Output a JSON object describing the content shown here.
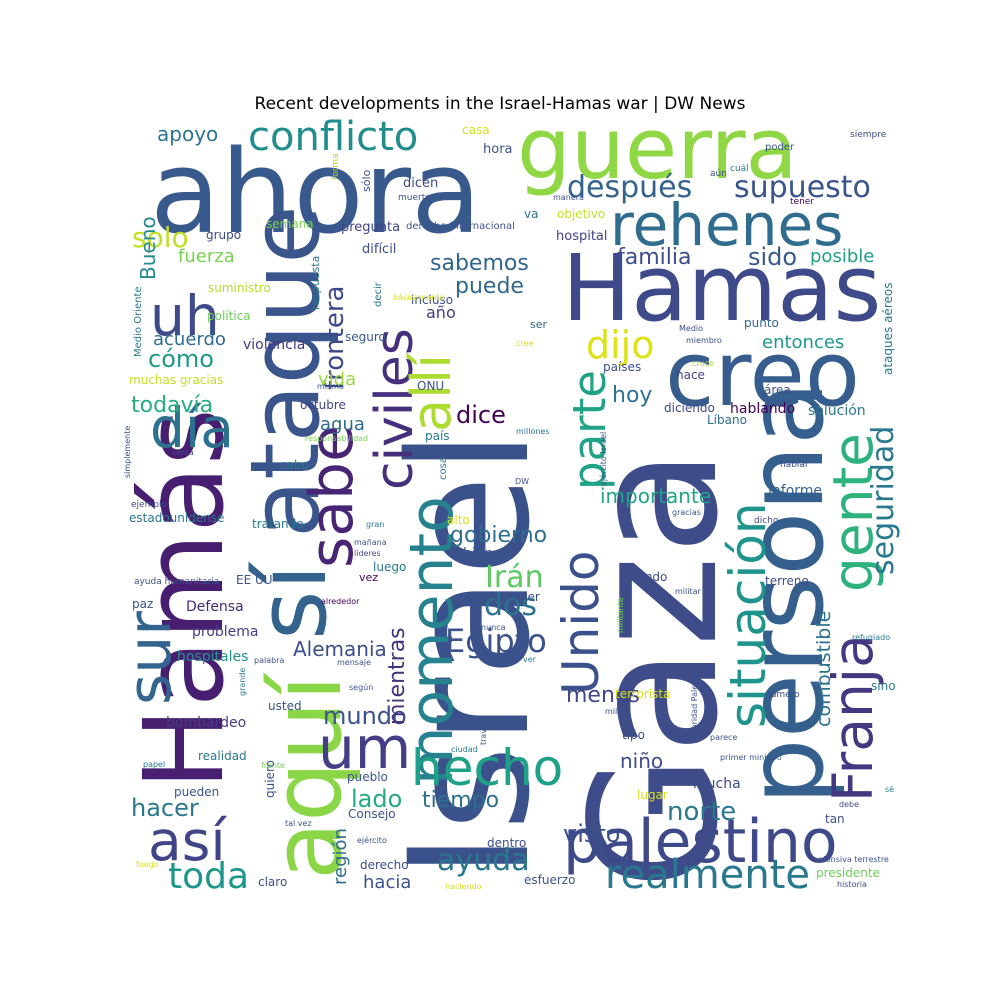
{
  "title": "Recent developments in the Israel-Hamas war | DW News",
  "words": [
    {
      "text": "Israel",
      "color": "#3b518b"
    },
    {
      "text": "Gaza",
      "color": "#3e4c8a"
    },
    {
      "text": "ahora",
      "color": "#38598c"
    },
    {
      "text": "guerra",
      "color": "#8fd744"
    },
    {
      "text": "Hamas",
      "color": "#3e4a89"
    },
    {
      "text": "Hamás",
      "color": "#481f70"
    },
    {
      "text": "ataque",
      "color": "#3a548c"
    },
    {
      "text": "aquí",
      "color": "#8bd646"
    },
    {
      "text": "persona",
      "color": "#355f8d"
    },
    {
      "text": "creo",
      "color": "#365d8d"
    },
    {
      "text": "rehenes",
      "color": "#2f6c8e"
    },
    {
      "text": "palestino",
      "color": "#3e4989"
    },
    {
      "text": "sí",
      "color": "#33638d"
    },
    {
      "text": "civiles",
      "color": "#46307e"
    },
    {
      "text": "sabe",
      "color": "#482475"
    },
    {
      "text": "allí",
      "color": "#addc30"
    },
    {
      "text": "momento",
      "color": "#26828e"
    },
    {
      "text": "Unido",
      "color": "#3b518b"
    },
    {
      "text": "parte",
      "color": "#20a386"
    },
    {
      "text": "situación",
      "color": "#1f948c"
    },
    {
      "text": "gente",
      "color": "#2db27d"
    },
    {
      "text": "Franja",
      "color": "#453781"
    },
    {
      "text": "seguridad",
      "color": "#2a788e"
    },
    {
      "text": "conflicto",
      "color": "#228d8d"
    },
    {
      "text": "después",
      "color": "#33638d"
    },
    {
      "text": "supuesto",
      "color": "#39558c"
    },
    {
      "text": "uh",
      "color": "#3e4a89"
    },
    {
      "text": "día",
      "color": "#2c728e"
    },
    {
      "text": "sur",
      "color": "#32648e"
    },
    {
      "text": "um",
      "color": "#433e85"
    },
    {
      "text": "así",
      "color": "#414487"
    },
    {
      "text": "hecho",
      "color": "#1fa188"
    },
    {
      "text": "realmente",
      "color": "#2a788e"
    },
    {
      "text": "toda",
      "color": "#1f968b"
    },
    {
      "text": "ayuda",
      "color": "#2a788e"
    },
    {
      "text": "frontera",
      "color": "#3e4989"
    },
    {
      "text": "dijo",
      "color": "#dde318"
    },
    {
      "text": "dice",
      "color": "#440154"
    },
    {
      "text": "Egipto",
      "color": "#3b528b"
    },
    {
      "text": "Irán",
      "color": "#5ec962"
    },
    {
      "text": "dos",
      "color": "#2b748e"
    },
    {
      "text": "gobierno",
      "color": "#2e6e8e"
    },
    {
      "text": "Alemania",
      "color": "#3d4e8a"
    },
    {
      "text": "mundo",
      "color": "#3b518b"
    },
    {
      "text": "mientras",
      "color": "#46337f"
    },
    {
      "text": "combustible",
      "color": "#2c718e"
    },
    {
      "text": "cómo",
      "color": "#1f9a8a"
    },
    {
      "text": "todavía",
      "color": "#27ad81"
    },
    {
      "text": "solo",
      "color": "#c2df23"
    },
    {
      "text": "apoyo",
      "color": "#2c738e"
    },
    {
      "text": "Bueno",
      "color": "#23898e"
    },
    {
      "text": "familia",
      "color": "#3e4c8a"
    },
    {
      "text": "sido",
      "color": "#38598c"
    },
    {
      "text": "posible",
      "color": "#1f9e89"
    },
    {
      "text": "sabemos",
      "color": "#31668e"
    },
    {
      "text": "puede",
      "color": "#31688e"
    },
    {
      "text": "año",
      "color": "#443983"
    },
    {
      "text": "hoy",
      "color": "#2c728e"
    },
    {
      "text": "importante",
      "color": "#20a386"
    },
    {
      "text": "menos",
      "color": "#3f4788"
    },
    {
      "text": "norte",
      "color": "#2a788e"
    },
    {
      "text": "visto",
      "color": "#3b528b"
    },
    {
      "text": "tiempo",
      "color": "#2d708e"
    },
    {
      "text": "lado",
      "color": "#25ab82"
    },
    {
      "text": "hacer",
      "color": "#2a788e"
    },
    {
      "text": "niño",
      "color": "#3e4c8a"
    },
    {
      "text": "hacia",
      "color": "#3b528b"
    },
    {
      "text": "región",
      "color": "#2f6c8e"
    },
    {
      "text": "agua",
      "color": "#31688e"
    },
    {
      "text": "vida",
      "color": "#9bd93c"
    },
    {
      "text": "acuerdo",
      "color": "#2e6e8e"
    },
    {
      "text": "fuerza",
      "color": "#7ad151"
    },
    {
      "text": "entonces",
      "color": "#1f988b"
    },
    {
      "text": "hablando",
      "color": "#440154"
    },
    {
      "text": "solución",
      "color": "#2a788e"
    },
    {
      "text": "informe",
      "color": "#33638d"
    },
    {
      "text": "mucha",
      "color": "#3e4c8a"
    },
    {
      "text": "bien",
      "color": "#3b528b"
    },
    {
      "text": "Defensa",
      "color": "#482878"
    },
    {
      "text": "problema",
      "color": "#433e85"
    },
    {
      "text": "hospitales",
      "color": "#21918c"
    },
    {
      "text": "bombardeo",
      "color": "#443983"
    },
    {
      "text": "violencia",
      "color": "#453781"
    },
    {
      "text": "política",
      "color": "#6ece58"
    },
    {
      "text": "suministro",
      "color": "#b5de2b"
    },
    {
      "text": "grupo",
      "color": "#3e4989"
    },
    {
      "text": "semana",
      "color": "#7fd34e"
    },
    {
      "text": "pregunta",
      "color": "#414487"
    },
    {
      "text": "respuesta",
      "color": "#2a788e"
    },
    {
      "text": "difícil",
      "color": "#3e4c8a"
    },
    {
      "text": "incluso",
      "color": "#3b518b"
    },
    {
      "text": "hospital",
      "color": "#424186"
    },
    {
      "text": "objetivo",
      "color": "#c8e020"
    },
    {
      "text": "derecho internacional",
      "color": "#3b528b"
    },
    {
      "text": "va",
      "color": "#2e6e8e"
    },
    {
      "text": "dicen",
      "color": "#3e4989"
    },
    {
      "text": "muerto",
      "color": "#3b528b"
    },
    {
      "text": "hora",
      "color": "#3b528b"
    },
    {
      "text": "casa",
      "color": "#d8e219"
    },
    {
      "text": "sólo",
      "color": "#3e4c8a"
    },
    {
      "text": "forma",
      "color": "#addc30"
    },
    {
      "text": "cuál",
      "color": "#2a788e"
    },
    {
      "text": "aún",
      "color": "#3e4989"
    },
    {
      "text": "poder",
      "color": "#3b528b"
    },
    {
      "text": "tener",
      "color": "#440154"
    },
    {
      "text": "siempre",
      "color": "#3e4c8a"
    },
    {
      "text": "manera",
      "color": "#3b528b"
    },
    {
      "text": "ser",
      "color": "#31688e"
    },
    {
      "text": "decir",
      "color": "#2a788e"
    },
    {
      "text": "básicamente",
      "color": "#d8e219"
    },
    {
      "text": "Medio Oriente",
      "color": "#2a788e"
    },
    {
      "text": "seguro",
      "color": "#38598c"
    },
    {
      "text": "cree",
      "color": "#d8e219"
    },
    {
      "text": "punto",
      "color": "#31688e"
    },
    {
      "text": "Medio",
      "color": "#3e4c8a"
    },
    {
      "text": "miembro",
      "color": "#3b528b"
    },
    {
      "text": "cruce",
      "color": "#addc30"
    },
    {
      "text": "países",
      "color": "#3e4c8a"
    },
    {
      "text": "hace",
      "color": "#414487"
    },
    {
      "text": "área",
      "color": "#3e4c8a"
    },
    {
      "text": "muchas gracias",
      "color": "#c2df23"
    },
    {
      "text": "mismo",
      "color": "#3b528b"
    },
    {
      "text": "ONU",
      "color": "#3b528b"
    },
    {
      "text": "octubre",
      "color": "#414487"
    },
    {
      "text": "responsabilidad",
      "color": "#7ad151"
    },
    {
      "text": "país",
      "color": "#2a788e"
    },
    {
      "text": "cosa",
      "color": "#2a788e"
    },
    {
      "text": "millones",
      "color": "#2a788e"
    },
    {
      "text": "ejército Israel",
      "color": "#3b528b"
    },
    {
      "text": "diciendo",
      "color": "#3e4989"
    },
    {
      "text": "Líbano",
      "color": "#2e6e8e"
    },
    {
      "text": "ataques aéreos",
      "color": "#2a788e"
    },
    {
      "text": "simplemente",
      "color": "#3b528b"
    },
    {
      "text": "cerca",
      "color": "#3e4c8a"
    },
    {
      "text": "cabo",
      "color": "#2a788e"
    },
    {
      "text": "DW",
      "color": "#3b528b"
    },
    {
      "text": "hablar",
      "color": "#3e4c8a"
    },
    {
      "text": "ejemplo",
      "color": "#3e4989"
    },
    {
      "text": "estadounidense",
      "color": "#2a788e"
    },
    {
      "text": "gran",
      "color": "#2a788e"
    },
    {
      "text": "alto",
      "color": "#d8e219"
    },
    {
      "text": "gracias",
      "color": "#3b528b"
    },
    {
      "text": "dicho",
      "color": "#3e4c8a"
    },
    {
      "text": "tratando",
      "color": "#2a788e"
    },
    {
      "text": "mañana",
      "color": "#3b528b"
    },
    {
      "text": "líderes",
      "color": "#3e4989"
    },
    {
      "text": "luego",
      "color": "#2a788e"
    },
    {
      "text": "ayuda humanitaria",
      "color": "#3b528b"
    },
    {
      "text": "EE UU",
      "color": "#3b528b"
    },
    {
      "text": "vez",
      "color": "#440154"
    },
    {
      "text": "cualquier",
      "color": "#3b528b"
    },
    {
      "text": "viendo",
      "color": "#3e4c8a"
    },
    {
      "text": "militar",
      "color": "#3b528b"
    },
    {
      "text": "terreno",
      "color": "#3e4c8a"
    },
    {
      "text": "alrededor",
      "color": "#440154"
    },
    {
      "text": "paz",
      "color": "#3b528b"
    },
    {
      "text": "militante",
      "color": "#6ece58"
    },
    {
      "text": "nunca",
      "color": "#3b528b"
    },
    {
      "text": "refugiado",
      "color": "#2a788e"
    },
    {
      "text": "palabra",
      "color": "#3b528b"
    },
    {
      "text": "mensaje",
      "color": "#3b528b"
    },
    {
      "text": "ver",
      "color": "#2a788e"
    },
    {
      "text": "grande",
      "color": "#2a788e"
    },
    {
      "text": "según",
      "color": "#3b528b"
    },
    {
      "text": "terrorista",
      "color": "#d8e219"
    },
    {
      "text": "Autoridad Palestina",
      "color": "#3b528b"
    },
    {
      "text": "número",
      "color": "#3e4c8a"
    },
    {
      "text": "sino",
      "color": "#2a788e"
    },
    {
      "text": "usted",
      "color": "#3b528b"
    },
    {
      "text": "miles",
      "color": "#3b528b"
    },
    {
      "text": "través",
      "color": "#3b528b"
    },
    {
      "text": "tipo",
      "color": "#3e4c8a"
    },
    {
      "text": "parece",
      "color": "#3b528b"
    },
    {
      "text": "ciudad",
      "color": "#2a788e"
    },
    {
      "text": "primer ministro",
      "color": "#3b528b"
    },
    {
      "text": "realidad",
      "color": "#2a788e"
    },
    {
      "text": "papel",
      "color": "#2a788e"
    },
    {
      "text": "frente",
      "color": "#6ece58"
    },
    {
      "text": "quiero",
      "color": "#3b528b"
    },
    {
      "text": "pueblo",
      "color": "#3b528b"
    },
    {
      "text": "lugar",
      "color": "#d8e219"
    },
    {
      "text": "sé",
      "color": "#2a788e"
    },
    {
      "text": "pueden",
      "color": "#3b528b"
    },
    {
      "text": "debe",
      "color": "#3e4c8a"
    },
    {
      "text": "tan",
      "color": "#3b528b"
    },
    {
      "text": "tal vez",
      "color": "#3b528b"
    },
    {
      "text": "Consejo",
      "color": "#3b528b"
    },
    {
      "text": "ejército",
      "color": "#3b528b"
    },
    {
      "text": "dentro",
      "color": "#3e4c8a"
    },
    {
      "text": "noche",
      "color": "#3b528b"
    },
    {
      "text": "fuego",
      "color": "#d8e219"
    },
    {
      "text": "derecho",
      "color": "#3e4c8a"
    },
    {
      "text": "claro",
      "color": "#3b528b"
    },
    {
      "text": "haciendo",
      "color": "#d8e219"
    },
    {
      "text": "esfuerzo",
      "color": "#3b528b"
    },
    {
      "text": "ofensiva terrestre",
      "color": "#3b528b"
    },
    {
      "text": "presidente",
      "color": "#6ece58"
    },
    {
      "text": "historia",
      "color": "#3b528b"
    }
  ]
}
